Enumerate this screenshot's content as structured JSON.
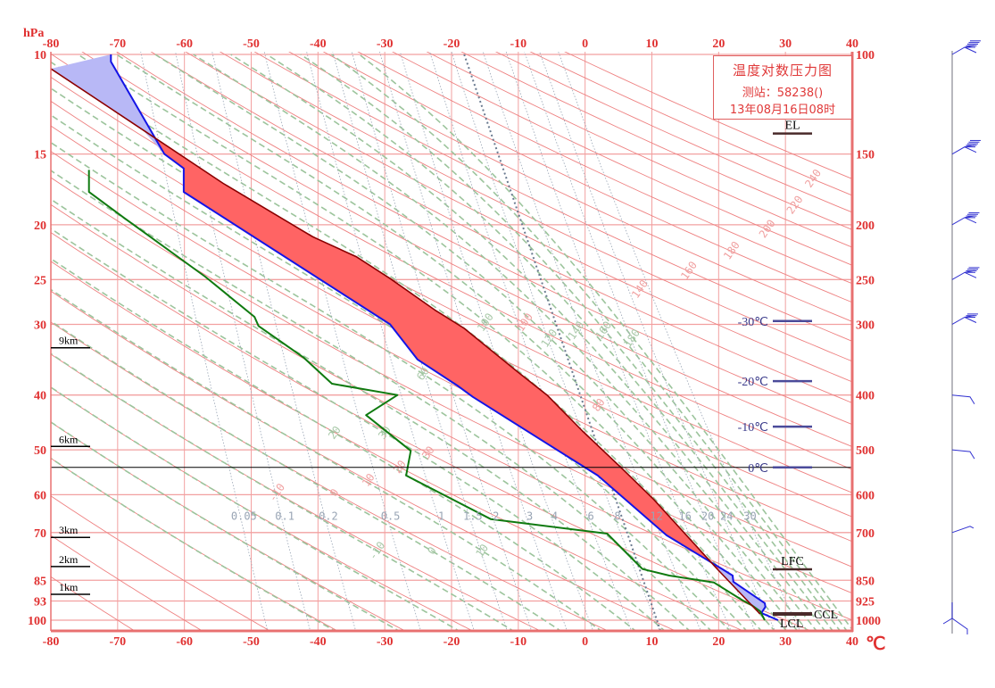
{
  "chart_data": {
    "type": "line",
    "title": "温度对数压力图",
    "station_label": "测站：58238()",
    "time_label": "13年08月16日08时",
    "x_axis": {
      "range": [
        -80,
        40
      ],
      "ticks": [
        -80,
        -70,
        -60,
        -50,
        -40,
        -30,
        -20,
        -10,
        0,
        10,
        20,
        30,
        40
      ],
      "tick_labels": [
        "-80",
        "-70",
        "-60",
        "-50",
        "-40",
        "-30",
        "-20",
        "-10",
        "0",
        "10",
        "20",
        "30",
        "40"
      ],
      "unit_label": "℃",
      "grid": true
    },
    "y_axis": {
      "scale": "log",
      "range": [
        1044,
        100
      ],
      "unit_label": "hPa",
      "levels": [
        100,
        150,
        200,
        250,
        300,
        400,
        500,
        600,
        700,
        850,
        925,
        1000
      ],
      "left_tick_labels": [
        "10",
        "15",
        "20",
        "25",
        "30",
        "40",
        "50",
        "60",
        "70",
        "85",
        "93",
        "100"
      ],
      "right_tick_labels": [
        "100",
        "150",
        "200",
        "250",
        "300",
        "400",
        "500",
        "600",
        "700",
        "850",
        "925",
        "1000"
      ],
      "grid": true
    },
    "series": [
      {
        "name": "temperature",
        "color": "#1414e6",
        "points": [
          [
            1000,
            28.9
          ],
          [
            971,
            26.4
          ],
          [
            947,
            27.0
          ],
          [
            933,
            26.9
          ],
          [
            855,
            22.2
          ],
          [
            834,
            22.1
          ],
          [
            813,
            20.6
          ],
          [
            708,
            12.2
          ],
          [
            555,
            1.9
          ],
          [
            403,
            -16.8
          ],
          [
            385,
            -19.1
          ],
          [
            346,
            -25.1
          ],
          [
            300,
            -29.2
          ],
          [
            175,
            -60.1
          ],
          [
            159,
            -60.1
          ],
          [
            150,
            -63.0
          ],
          [
            103,
            -71.0
          ],
          [
            100,
            -71.0
          ]
        ]
      },
      {
        "name": "dewpoint",
        "color": "#0f7a0f",
        "points": [
          [
            1000,
            26.9
          ],
          [
            964,
            26.2
          ],
          [
            940,
            24.9
          ],
          [
            923,
            23.6
          ],
          [
            858,
            19.3
          ],
          [
            834,
            12.6
          ],
          [
            812,
            8.6
          ],
          [
            703,
            3.3
          ],
          [
            663,
            -14.1
          ],
          [
            555,
            -26.8
          ],
          [
            502,
            -26.1
          ],
          [
            434,
            -32.8
          ],
          [
            400,
            -28.1
          ],
          [
            382,
            -37.9
          ],
          [
            343,
            -42.2
          ],
          [
            302,
            -48.9
          ],
          [
            291,
            -49.5
          ],
          [
            247,
            -56.9
          ],
          [
            195,
            -68.9
          ],
          [
            175,
            -74.3
          ],
          [
            160,
            -74.3
          ]
        ]
      },
      {
        "name": "parcel",
        "color": "#8b0000",
        "points": [
          [
            975,
            26.2
          ],
          [
            810,
            19.7
          ],
          [
            612,
            10.3
          ],
          [
            539,
            5.5
          ],
          [
            463,
            -0.4
          ],
          [
            400,
            -5.7
          ],
          [
            364,
            -10.1
          ],
          [
            305,
            -18.1
          ],
          [
            283,
            -22.5
          ],
          [
            249,
            -29.2
          ],
          [
            228,
            -34.2
          ],
          [
            210,
            -40.8
          ],
          [
            169,
            -54.2
          ],
          [
            136,
            -66.2
          ],
          [
            106,
            -80.0
          ]
        ]
      }
    ],
    "positive_area_color": "#ff6464",
    "negative_area_color": "#b8b8f6",
    "reference_line": {
      "points": [
        [
          100,
          -18.1
        ],
        [
          1044,
          11.3
        ]
      ],
      "color": "#6a7a90"
    },
    "freezing_level_hpa": 537,
    "dry_adiabats_theta_c": [
      -70,
      -60,
      -50,
      -40,
      -30,
      -20,
      -10,
      0,
      10,
      20,
      30,
      40,
      50,
      60,
      70,
      80,
      90,
      100,
      110,
      120,
      130,
      140,
      150,
      160,
      170,
      180,
      190,
      200,
      210,
      220,
      230,
      240,
      250
    ],
    "dry_adiabat_labels": [
      "-10",
      "0",
      "10",
      "20",
      "30",
      "60",
      "80",
      "100",
      "140",
      "160",
      "180",
      "200",
      "220",
      "240"
    ],
    "moist_adiabats_theta_se_c": [
      -40,
      -30,
      -20,
      -10,
      0,
      10,
      20,
      30,
      40,
      50,
      60,
      70,
      80,
      90,
      100,
      110,
      120,
      130,
      140,
      150,
      160,
      170,
      180
    ],
    "moist_adiabat_labels": [
      "-10",
      "0",
      "10",
      "20",
      "30",
      "60",
      "80",
      "100",
      "120",
      "140",
      "160",
      "180"
    ],
    "mixing_ratio_gkg": [
      0.05,
      0.1,
      0.2,
      0.5,
      1,
      1.5,
      2,
      3,
      4,
      6,
      8,
      12,
      16,
      20,
      24,
      30
    ],
    "mixing_ratio_labels": [
      "0.05",
      "0.1",
      "0.2",
      "0.5",
      "1",
      "1.5",
      "2",
      "3",
      "4",
      "6",
      "8",
      "12",
      "16",
      "20",
      "24",
      "30"
    ],
    "height_markers": [
      {
        "label": "9km",
        "p": 330
      },
      {
        "label": "6km",
        "p": 493
      },
      {
        "label": "3km",
        "p": 714
      },
      {
        "label": "2km",
        "p": 804
      },
      {
        "label": "1km",
        "p": 900
      }
    ],
    "level_markers": [
      {
        "label": "EL",
        "p": 138,
        "kind": "parcel",
        "label_side": "above"
      },
      {
        "label": "-30℃",
        "p": 296,
        "kind": "isotherm",
        "label_side": "left"
      },
      {
        "label": "-20℃",
        "p": 378,
        "kind": "isotherm",
        "label_side": "left"
      },
      {
        "label": "-10℃",
        "p": 455,
        "kind": "isotherm",
        "label_side": "left"
      },
      {
        "label": "0℃",
        "p": 537,
        "kind": "isotherm",
        "label_side": "left"
      },
      {
        "label": "LFC",
        "p": 813,
        "kind": "parcel",
        "label_side": "above"
      },
      {
        "label": "CCL",
        "p": 975,
        "kind": "ccl",
        "label_side": "right"
      },
      {
        "label": "LCL",
        "p": 975,
        "kind": "none",
        "label_side": "below"
      }
    ],
    "wind_barbs": [
      {
        "p": 100,
        "feathers": 5
      },
      {
        "p": 150,
        "feathers": 5
      },
      {
        "p": 200,
        "feathers": 4
      },
      {
        "p": 250,
        "feathers": 4
      },
      {
        "p": 300,
        "feathers": 3
      },
      {
        "p": 400,
        "feathers": 1,
        "style": "flat"
      },
      {
        "p": 500,
        "feathers": 1,
        "style": "flat"
      },
      {
        "p": 700,
        "feathers": 1,
        "style": "rising"
      },
      {
        "p": 1000,
        "feathers": 1,
        "style": "calm"
      }
    ]
  }
}
